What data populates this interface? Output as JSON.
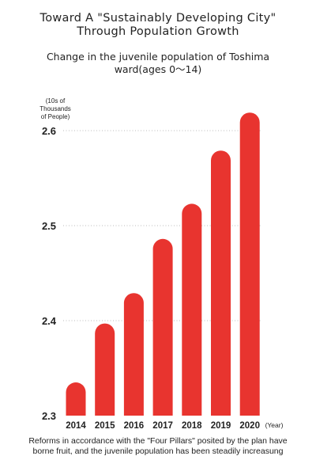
{
  "header": {
    "title_line1": "Toward A \"Sustainably Developing City\"",
    "title_line2": "Through Population Growth",
    "subtitle_line1": "Change in the juvenile population of Toshima",
    "subtitle_line2": "ward(ages 0～14)"
  },
  "caption": {
    "line1": "Reforms in accordance with the \"Four Pillars\" posited by the",
    "line2": "plan have borne fruit, and the juvenile population has been",
    "line3": "steadily increasung"
  },
  "colors": {
    "bar": "#e8342f",
    "text": "#222222",
    "grid": "#bbbbbb"
  },
  "chart_data": {
    "type": "bar",
    "title": "Change in the juvenile population of Toshima ward(ages 0～14)",
    "ylabel": "(10s of Thousands of People)",
    "xlabel": "(Year)",
    "categories": [
      "2014",
      "2015",
      "2016",
      "2017",
      "2018",
      "2019",
      "2020"
    ],
    "values": [
      2.335,
      2.397,
      2.429,
      2.486,
      2.523,
      2.579,
      2.619
    ],
    "yticks": [
      "2.3",
      "2.4",
      "2.5",
      "2.6"
    ],
    "ylim": [
      2.3,
      2.63
    ],
    "grid": true
  }
}
